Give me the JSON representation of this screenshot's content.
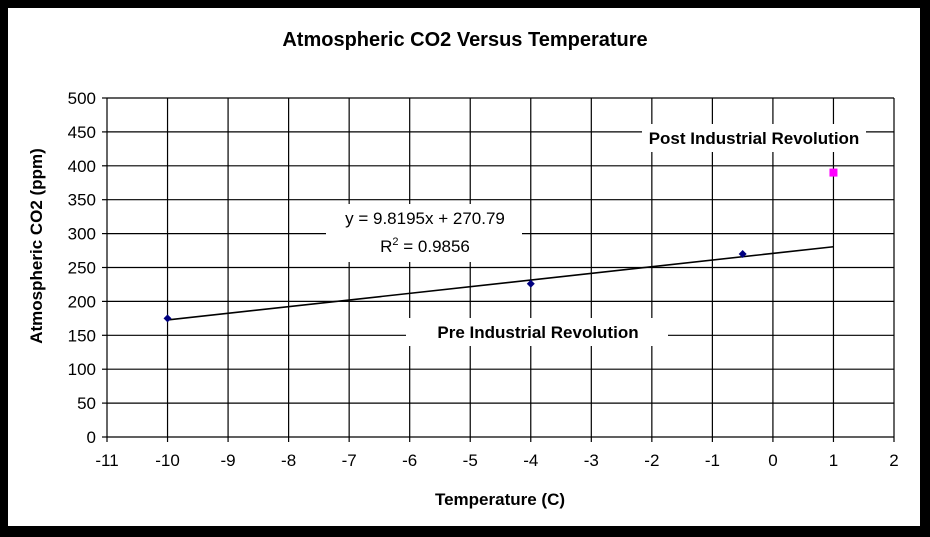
{
  "chart_data": {
    "type": "scatter",
    "title": "Atmospheric CO2 Versus Temperature",
    "xlabel": "Temperature (C)",
    "ylabel": "Atmospheric CO2 (ppm)",
    "xlim": [
      -11,
      2
    ],
    "ylim": [
      0,
      500
    ],
    "x_ticks": [
      -11,
      -10,
      -9,
      -8,
      -7,
      -6,
      -5,
      -4,
      -3,
      -2,
      -1,
      0,
      1,
      2
    ],
    "y_ticks": [
      0,
      50,
      100,
      150,
      200,
      250,
      300,
      350,
      400,
      450,
      500
    ],
    "grid": true,
    "series": [
      {
        "name": "Pre Industrial Revolution",
        "color": "#000080",
        "marker": "diamond",
        "points": [
          [
            -10,
            175
          ],
          [
            -4,
            226
          ],
          [
            -0.5,
            270
          ]
        ]
      },
      {
        "name": "Post Industrial Revolution",
        "color": "#ff00ff",
        "marker": "square",
        "points": [
          [
            1,
            390
          ]
        ]
      }
    ],
    "trendline": {
      "x_range": [
        -10,
        1
      ],
      "slope": 9.8195,
      "intercept": 270.79,
      "color": "#000000"
    },
    "annotations": {
      "equation": "y = 9.8195x + 270.79",
      "r2_label": "R",
      "r2_sup": "2",
      "r2_value": " = 0.9856",
      "pre_label": "Pre Industrial Revolution",
      "post_label": "Post Industrial Revolution"
    }
  }
}
